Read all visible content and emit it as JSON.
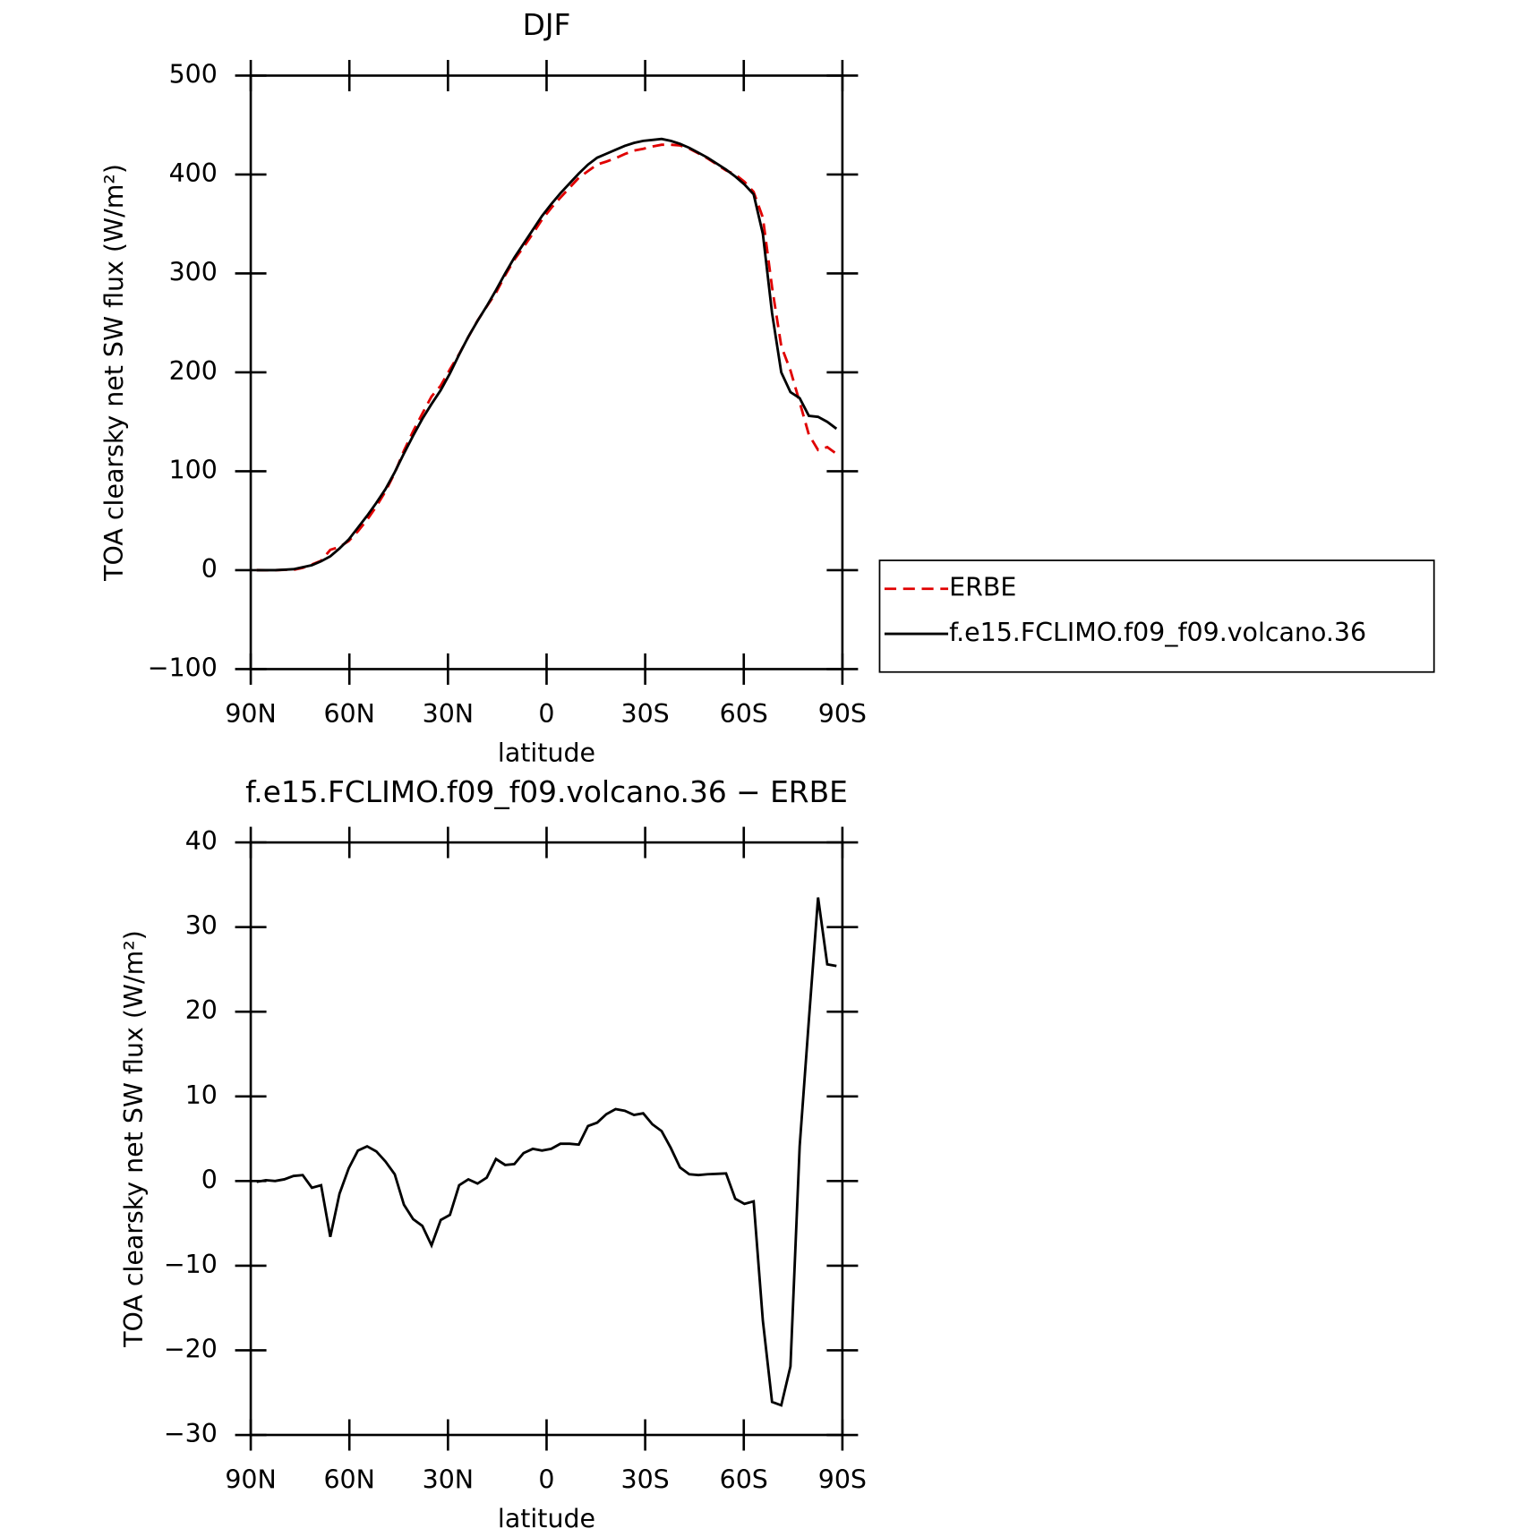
{
  "chart_data": [
    {
      "type": "line",
      "title": "DJF",
      "x_label": "latitude",
      "y_label": "TOA clearsky net SW flux (W/m²)",
      "xlim": [
        90,
        -90
      ],
      "ylim": [
        -100,
        500
      ],
      "xticks": [
        {
          "value": 90,
          "label": "90N"
        },
        {
          "value": 60,
          "label": "60N"
        },
        {
          "value": 30,
          "label": "30N"
        },
        0,
        {
          "value": -30,
          "label": "30S"
        },
        {
          "value": -60,
          "label": "60S"
        },
        {
          "value": -90,
          "label": "90S"
        }
      ],
      "yticks": [
        {
          "value": -100,
          "label": "−100"
        },
        0,
        100,
        200,
        300,
        400,
        500
      ],
      "legend": "outside right",
      "x": [
        88.2,
        85.4,
        82.6,
        79.8,
        77,
        74.2,
        71.4,
        68.6,
        65.8,
        63,
        60.2,
        57.4,
        54.6,
        51.8,
        49,
        46.2,
        43.4,
        40.6,
        37.8,
        35,
        32.2,
        29.4,
        26.6,
        23.8,
        21,
        18.2,
        15.4,
        12.6,
        9.8,
        7,
        4.2,
        1.4,
        -1.4,
        -4.2,
        -7,
        -9.8,
        -12.6,
        -15.4,
        -18.2,
        -21,
        -23.8,
        -26.6,
        -29.4,
        -32.2,
        -35,
        -37.8,
        -40.6,
        -43.4,
        -46.2,
        -49,
        -51.8,
        -54.6,
        -57.4,
        -60.2,
        -63,
        -65.8,
        -68.6,
        -71.4,
        -74.2,
        -77,
        -79.8,
        -82.6,
        -85.4,
        -88.2
      ],
      "series": [
        {
          "name": "ERBE",
          "color": "#e00000",
          "style": "dashed",
          "values": [
            0.1,
            0,
            0,
            0.3,
            0.4,
            2.3,
            5.8,
            9.5,
            20.6,
            23.5,
            29.5,
            39.4,
            50.9,
            64.5,
            79.7,
            98.2,
            120.8,
            140.5,
            158.3,
            175.6,
            186.6,
            203,
            218.5,
            235.8,
            252.3,
            266.6,
            280.4,
            298.1,
            314,
            326.7,
            340.2,
            354.4,
            366.2,
            376.6,
            386.7,
            396.7,
            403.5,
            410.1,
            413.1,
            416.5,
            420.7,
            424.2,
            426,
            428.3,
            430.1,
            430.1,
            429.4,
            426.2,
            421.3,
            416.2,
            410.2,
            404.1,
            400.1,
            392.7,
            382.4,
            356.5,
            286.1,
            226.5,
            201.9,
            169.9,
            137,
            121.5,
            124.4,
            117.6
          ]
        },
        {
          "name": "f.e15.FCLIMO.f09_f09.volcano.36",
          "color": "#000000",
          "style": "solid",
          "values": [
            0,
            0,
            0,
            0.5,
            1,
            3,
            5,
            9,
            14,
            22,
            31,
            43,
            55,
            68,
            82,
            99,
            118,
            136,
            153,
            168,
            182,
            199,
            218,
            236,
            252,
            267,
            283,
            300,
            316,
            330,
            344,
            358,
            370,
            381,
            391,
            401,
            410,
            417,
            421,
            425,
            429,
            432,
            434,
            435,
            436,
            434,
            431,
            427,
            422,
            417,
            411,
            405,
            398,
            390,
            380,
            340,
            260,
            200,
            180,
            174,
            156,
            155,
            150,
            143
          ]
        }
      ]
    },
    {
      "type": "line",
      "title": "f.e15.FCLIMO.f09_f09.volcano.36 − ERBE",
      "x_label": "latitude",
      "y_label": "TOA clearsky net SW flux (W/m²)",
      "xlim": [
        90,
        -90
      ],
      "ylim": [
        -30,
        40
      ],
      "xticks": [
        {
          "value": 90,
          "label": "90N"
        },
        {
          "value": 60,
          "label": "60N"
        },
        {
          "value": 30,
          "label": "30N"
        },
        0,
        {
          "value": -30,
          "label": "30S"
        },
        {
          "value": -60,
          "label": "60S"
        },
        {
          "value": -90,
          "label": "90S"
        }
      ],
      "yticks": [
        {
          "value": -30,
          "label": "−30"
        },
        {
          "value": -20,
          "label": "−20"
        },
        {
          "value": -10,
          "label": "−10"
        },
        0,
        10,
        20,
        30,
        40
      ],
      "x": [
        88.2,
        85.4,
        82.6,
        79.8,
        77,
        74.2,
        71.4,
        68.6,
        65.8,
        63,
        60.2,
        57.4,
        54.6,
        51.8,
        49,
        46.2,
        43.4,
        40.6,
        37.8,
        35,
        32.2,
        29.4,
        26.6,
        23.8,
        21,
        18.2,
        15.4,
        12.6,
        9.8,
        7,
        4.2,
        1.4,
        -1.4,
        -4.2,
        -7,
        -9.8,
        -12.6,
        -15.4,
        -18.2,
        -21,
        -23.8,
        -26.6,
        -29.4,
        -32.2,
        -35,
        -37.8,
        -40.6,
        -43.4,
        -46.2,
        -49,
        -51.8,
        -54.6,
        -57.4,
        -60.2,
        -63,
        -65.8,
        -68.6,
        -71.4,
        -74.2,
        -77,
        -79.8,
        -82.6,
        -85.4,
        -88.2
      ],
      "series": [
        {
          "color": "#000000",
          "style": "solid",
          "values": [
            -0.1,
            0.1,
            0,
            0.2,
            0.6,
            0.7,
            -0.8,
            -0.5,
            -6.6,
            -1.5,
            1.5,
            3.6,
            4.1,
            3.5,
            2.3,
            0.8,
            -2.8,
            -4.5,
            -5.3,
            -7.6,
            -4.6,
            -4.0,
            -0.5,
            0.2,
            -0.3,
            0.4,
            2.6,
            1.9,
            2.0,
            3.3,
            3.8,
            3.6,
            3.8,
            4.4,
            4.4,
            4.3,
            6.5,
            6.9,
            7.9,
            8.5,
            8.3,
            7.8,
            8.0,
            6.7,
            5.9,
            3.9,
            1.6,
            0.8,
            0.7,
            0.8,
            0.85,
            0.9,
            -2.1,
            -2.7,
            -2.4,
            -16.5,
            -26.1,
            -26.5,
            -21.9,
            4.1,
            19,
            33.5,
            25.6,
            25.4
          ]
        }
      ]
    }
  ]
}
